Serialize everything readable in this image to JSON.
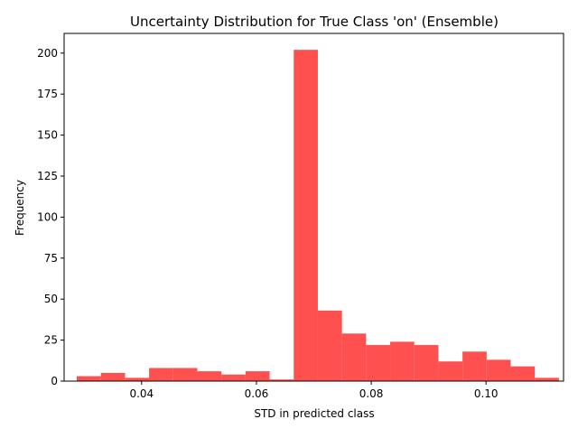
{
  "chart_data": {
    "type": "bar",
    "title": "Uncertainty Distribution for True Class 'on' (Ensemble)",
    "xlabel": "STD in predicted class",
    "ylabel": "Frequency",
    "xlim": [
      0.0265,
      0.1135
    ],
    "ylim": [
      0,
      212
    ],
    "x_ticks": [
      {
        "value": 0.04,
        "label": "0.04"
      },
      {
        "value": 0.06,
        "label": "0.06"
      },
      {
        "value": 0.08,
        "label": "0.08"
      },
      {
        "value": 0.1,
        "label": "0.10"
      }
    ],
    "y_ticks": [
      {
        "value": 0,
        "label": "0"
      },
      {
        "value": 25,
        "label": "25"
      },
      {
        "value": 50,
        "label": "50"
      },
      {
        "value": 75,
        "label": "75"
      },
      {
        "value": 100,
        "label": "100"
      },
      {
        "value": 125,
        "label": "125"
      },
      {
        "value": 150,
        "label": "150"
      },
      {
        "value": 175,
        "label": "175"
      },
      {
        "value": 200,
        "label": "200"
      }
    ],
    "bins": [
      {
        "x0": 0.0287,
        "x1": 0.0329,
        "count": 3
      },
      {
        "x0": 0.0329,
        "x1": 0.0371,
        "count": 5
      },
      {
        "x0": 0.0371,
        "x1": 0.0413,
        "count": 2
      },
      {
        "x0": 0.0413,
        "x1": 0.0455,
        "count": 8
      },
      {
        "x0": 0.0455,
        "x1": 0.0497,
        "count": 8
      },
      {
        "x0": 0.0497,
        "x1": 0.0539,
        "count": 6
      },
      {
        "x0": 0.0539,
        "x1": 0.0581,
        "count": 4
      },
      {
        "x0": 0.0581,
        "x1": 0.0623,
        "count": 6
      },
      {
        "x0": 0.0623,
        "x1": 0.0665,
        "count": 1
      },
      {
        "x0": 0.0665,
        "x1": 0.0707,
        "count": 202
      },
      {
        "x0": 0.0707,
        "x1": 0.0749,
        "count": 43
      },
      {
        "x0": 0.0749,
        "x1": 0.0791,
        "count": 29
      },
      {
        "x0": 0.0791,
        "x1": 0.0833,
        "count": 22
      },
      {
        "x0": 0.0833,
        "x1": 0.0875,
        "count": 24
      },
      {
        "x0": 0.0875,
        "x1": 0.0917,
        "count": 22
      },
      {
        "x0": 0.0917,
        "x1": 0.0959,
        "count": 12
      },
      {
        "x0": 0.0959,
        "x1": 0.1001,
        "count": 18
      },
      {
        "x0": 0.1001,
        "x1": 0.1043,
        "count": 13
      },
      {
        "x0": 0.1043,
        "x1": 0.1085,
        "count": 9
      },
      {
        "x0": 0.1085,
        "x1": 0.1127,
        "count": 2
      }
    ],
    "bar_color": "#ff5050",
    "grid": false,
    "legend": "none"
  }
}
